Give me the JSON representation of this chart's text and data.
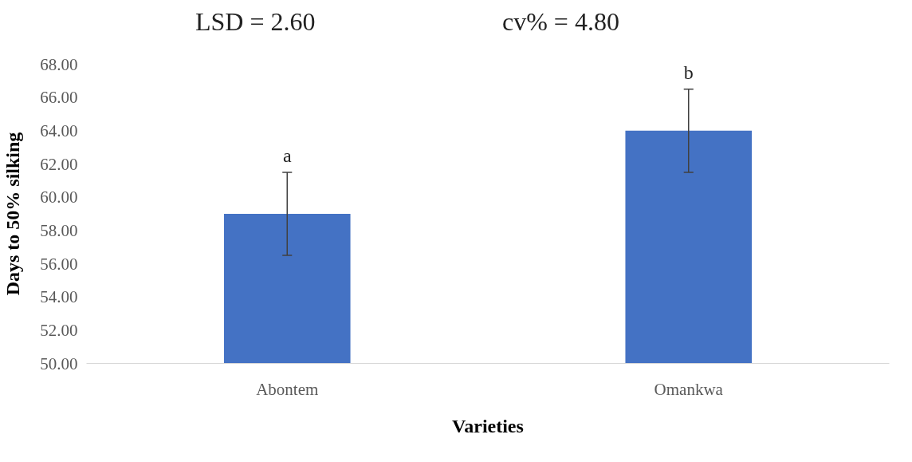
{
  "chart_data": {
    "type": "bar",
    "xlabel": "Varieties",
    "ylabel": "Days to 50% silking",
    "categories": [
      "Abontem",
      "Omankwa"
    ],
    "values": [
      59.0,
      64.0
    ],
    "color": "#4472c4",
    "errors": [
      2.5,
      2.5
    ],
    "ylim": [
      50,
      68
    ],
    "yticks": [
      {
        "value": 50,
        "label": "50.00"
      },
      {
        "value": 52,
        "label": "52.00"
      },
      {
        "value": 54,
        "label": "54.00"
      },
      {
        "value": 56,
        "label": "56.00"
      },
      {
        "value": 58,
        "label": "58.00"
      },
      {
        "value": 60,
        "label": "60.00"
      },
      {
        "value": 62,
        "label": "62.00"
      },
      {
        "value": 64,
        "label": "64.00"
      },
      {
        "value": 66,
        "label": "66.00"
      },
      {
        "value": 68,
        "label": "68.00"
      }
    ],
    "annotations": [
      "LSD = 2.60",
      "cv% = 4.80",
      "a",
      "b"
    ],
    "grid": false
  }
}
